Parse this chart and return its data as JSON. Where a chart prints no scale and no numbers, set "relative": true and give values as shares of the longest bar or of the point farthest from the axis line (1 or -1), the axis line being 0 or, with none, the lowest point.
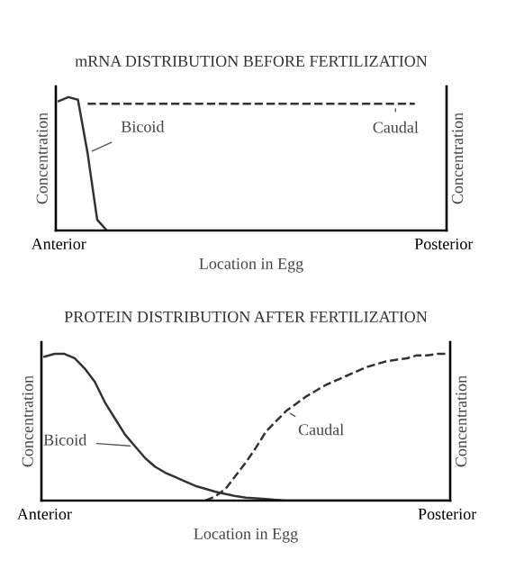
{
  "chart_data": [
    {
      "type": "line",
      "title": "mRNA DISTRIBUTION BEFORE FERTILIZATION",
      "xlabel": "Location in Egg",
      "ylabel": "Concentration",
      "y2label": "Concentration",
      "relative": true,
      "grid": false,
      "legend": false,
      "marker": "none",
      "categories": [
        "Anterior",
        null,
        null,
        null,
        null,
        null,
        null,
        null,
        null,
        null,
        null,
        null,
        null,
        null,
        null,
        null,
        null,
        null,
        null,
        null,
        null,
        null,
        null,
        null,
        null,
        null,
        null,
        null,
        null,
        null,
        null,
        null,
        null,
        null,
        null,
        null,
        null,
        null,
        null,
        null,
        "Posterior"
      ],
      "series": [
        {
          "name": "Bicoid",
          "color": "#333333",
          "line_style": "solid",
          "values": [
            0.97,
            1,
            0.98,
            0.58,
            0.08,
            0,
            null,
            null,
            null,
            null,
            null,
            null,
            null,
            null,
            null,
            null,
            null,
            null,
            null,
            null,
            null,
            null,
            null,
            null,
            null,
            null,
            null,
            null,
            null,
            null,
            null,
            null,
            null,
            null,
            null,
            null,
            null,
            null,
            null,
            null,
            null
          ]
        },
        {
          "name": "Caudal",
          "color": "#333333",
          "line_style": "dashed",
          "values": [
            null,
            null,
            null,
            0.95,
            0.95,
            0.95,
            0.95,
            0.95,
            0.95,
            0.95,
            0.95,
            0.95,
            0.95,
            0.95,
            0.95,
            0.95,
            0.95,
            0.95,
            0.95,
            0.95,
            0.95,
            0.95,
            0.95,
            0.95,
            0.95,
            0.95,
            0.95,
            0.95,
            0.95,
            0.95,
            0.95,
            0.95,
            0.95,
            0.95,
            0.95,
            0.95,
            0.95,
            0.95,
            null,
            null,
            null
          ]
        }
      ]
    },
    {
      "type": "line",
      "title": "PROTEIN DISTRIBUTION AFTER FERTILIZATION",
      "xlabel": "Location in Egg",
      "ylabel": "Concentration",
      "y2label": "Concentration",
      "relative": true,
      "grid": false,
      "legend": false,
      "marker": "none",
      "categories": [
        "Anterior",
        null,
        null,
        null,
        null,
        null,
        null,
        null,
        null,
        null,
        null,
        null,
        null,
        null,
        null,
        null,
        null,
        null,
        null,
        null,
        null,
        null,
        null,
        null,
        null,
        null,
        null,
        null,
        null,
        null,
        null,
        null,
        null,
        null,
        null,
        null,
        null,
        null,
        null,
        null,
        "Posterior"
      ],
      "series": [
        {
          "name": "Bicoid",
          "color": "#333333",
          "line_style": "solid",
          "values": [
            0.98,
            1,
            1,
            0.97,
            0.9,
            0.81,
            0.67,
            0.56,
            0.45,
            0.37,
            0.29,
            0.23,
            0.19,
            0.16,
            0.13,
            0.1,
            0.08,
            0.06,
            0.045,
            0.03,
            0.02,
            0.015,
            0.01,
            0.005,
            0,
            0,
            0,
            0,
            0,
            0,
            0,
            0,
            0,
            0,
            0,
            0,
            0,
            0,
            0,
            0,
            0
          ]
        },
        {
          "name": "Caudal",
          "color": "#333333",
          "line_style": "dashed",
          "values": [
            null,
            null,
            null,
            null,
            null,
            null,
            null,
            null,
            null,
            null,
            null,
            null,
            null,
            null,
            null,
            null,
            0,
            0.03,
            0.08,
            0.17,
            0.26,
            0.36,
            0.47,
            0.54,
            0.61,
            0.66,
            0.71,
            0.75,
            0.79,
            0.82,
            0.85,
            0.88,
            0.91,
            0.93,
            0.95,
            0.96,
            0.97,
            0.99,
            0.99,
            1,
            1
          ]
        }
      ]
    }
  ]
}
